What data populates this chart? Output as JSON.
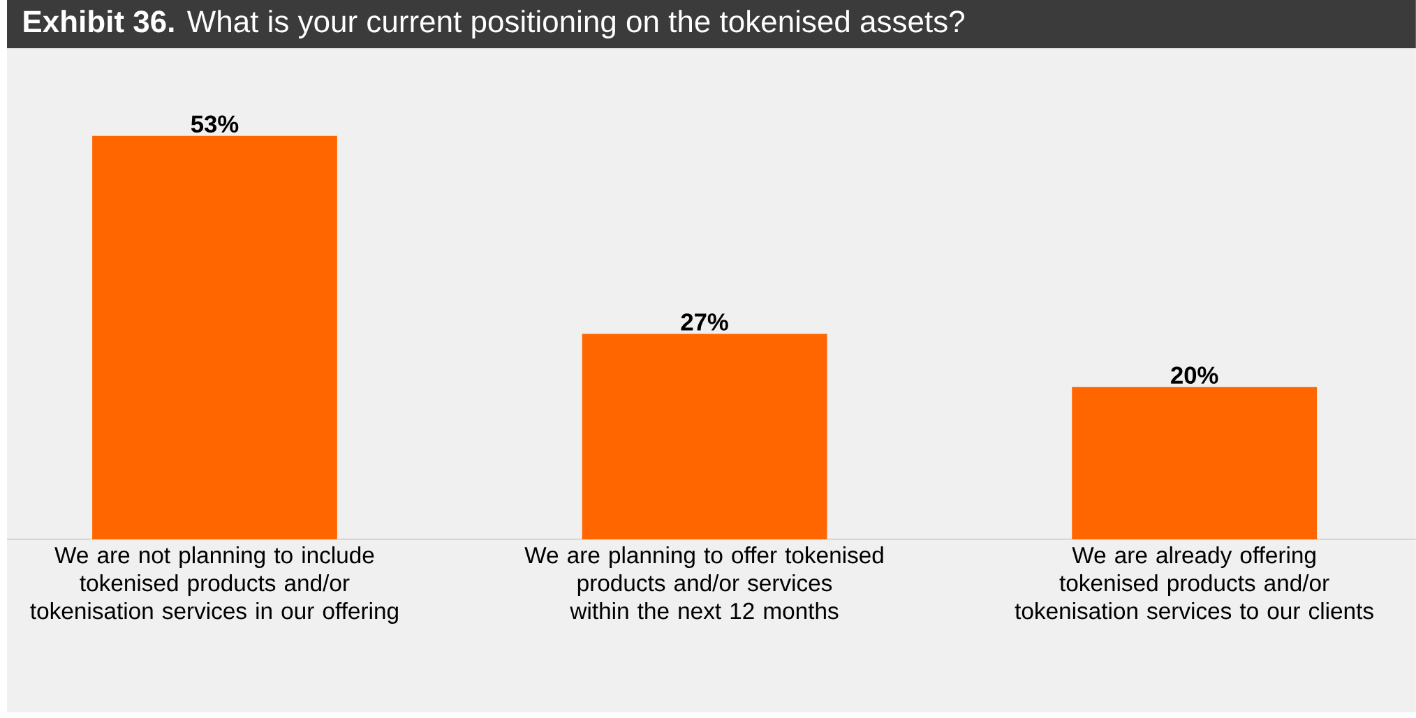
{
  "chart_data": {
    "type": "bar",
    "title": "**Exhibit 36.** What is your current positioning on the tokenised assets?",
    "categories": [
      "We are not planning to include tokenised products and/or tokenisation services in our offering",
      "We are planning to offer tokenised products and/or services within the next 12 months",
      "We are already offering tokenised products and/or tokenisation services to our clients"
    ],
    "values": [
      53,
      27,
      20
    ],
    "value_labels": [
      "53%",
      "27%",
      "20%"
    ],
    "color": "#ff6600"
  }
}
